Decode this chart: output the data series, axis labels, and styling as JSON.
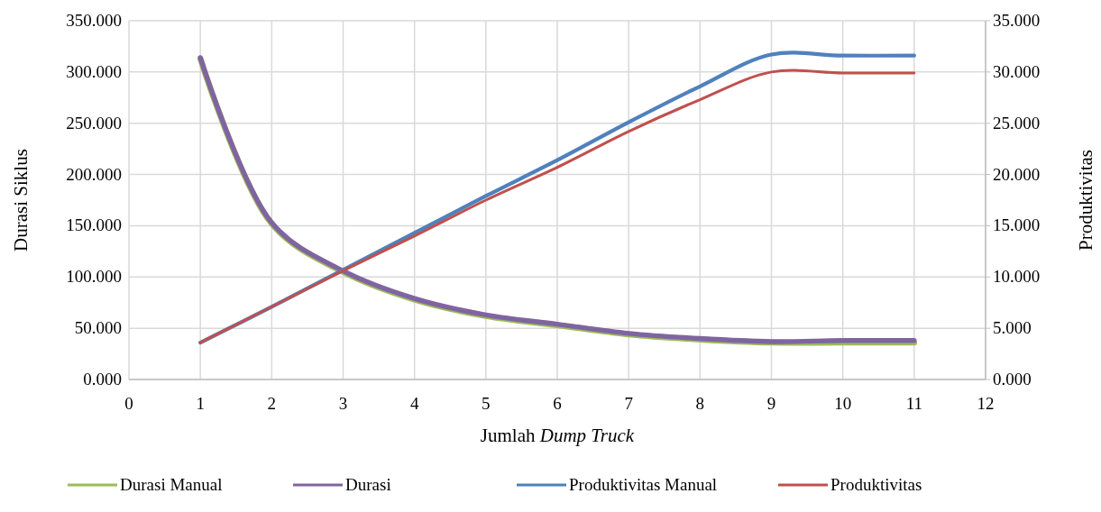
{
  "chart_data": {
    "type": "line",
    "xlabel": "Jumlah $_{}$Dump Truck",
    "ylabel": "Durasi Siklus",
    "y2label": "Produktivitas",
    "x": [
      1,
      2,
      3,
      4,
      5,
      6,
      7,
      8,
      9,
      10,
      11
    ],
    "xlim": [
      0,
      12
    ],
    "xticks": [
      0,
      1,
      2,
      3,
      4,
      5,
      6,
      7,
      8,
      9,
      10,
      11,
      12
    ],
    "ylim": [
      0,
      350
    ],
    "yticks": [
      {
        "value": 0,
        "label": "0.000"
      },
      {
        "value": 50,
        "label": "50.000"
      },
      {
        "value": 100,
        "label": "100.000"
      },
      {
        "value": 150,
        "label": "150.000"
      },
      {
        "value": 200,
        "label": "200.000"
      },
      {
        "value": 250,
        "label": "250.000"
      },
      {
        "value": 300,
        "label": "300.000"
      },
      {
        "value": 350,
        "label": "350.000"
      }
    ],
    "y2lim": [
      0,
      35
    ],
    "y2ticks": [
      {
        "value": 0,
        "label": "0.000"
      },
      {
        "value": 5,
        "label": "5.000"
      },
      {
        "value": 10,
        "label": "10.000"
      },
      {
        "value": 15,
        "label": "15.000"
      },
      {
        "value": 20,
        "label": "20.000"
      },
      {
        "value": 25,
        "label": "25.000"
      },
      {
        "value": 30,
        "label": "30.000"
      },
      {
        "value": 35,
        "label": "35.000"
      }
    ],
    "grid": true,
    "legend": "bottom",
    "marker": "none",
    "line_style": "solid",
    "series": [
      {
        "name": "Durasi Manual",
        "color": "#9bbb59",
        "values": [
          313,
          152,
          105,
          78,
          62,
          53,
          44,
          39,
          36,
          36,
          36
        ]
      },
      {
        "name": "Durasi",
        "color": "#8064a2",
        "values": [
          314,
          153,
          106,
          79,
          63,
          54,
          45,
          40,
          37,
          38,
          38
        ]
      },
      {
        "name": "Produktivitas Manual",
        "color": "#4f81bd",
        "axis": "y2",
        "values": [
          3.6,
          7.1,
          10.7,
          14.3,
          17.9,
          21.4,
          25.1,
          28.6,
          31.7,
          31.6,
          31.6
        ]
      },
      {
        "name": "Produktivitas",
        "color": "#c0504d",
        "axis": "y2",
        "values": [
          3.6,
          7.1,
          10.6,
          14.0,
          17.5,
          20.7,
          24.2,
          27.3,
          30.0,
          29.9,
          29.9
        ]
      }
    ]
  }
}
